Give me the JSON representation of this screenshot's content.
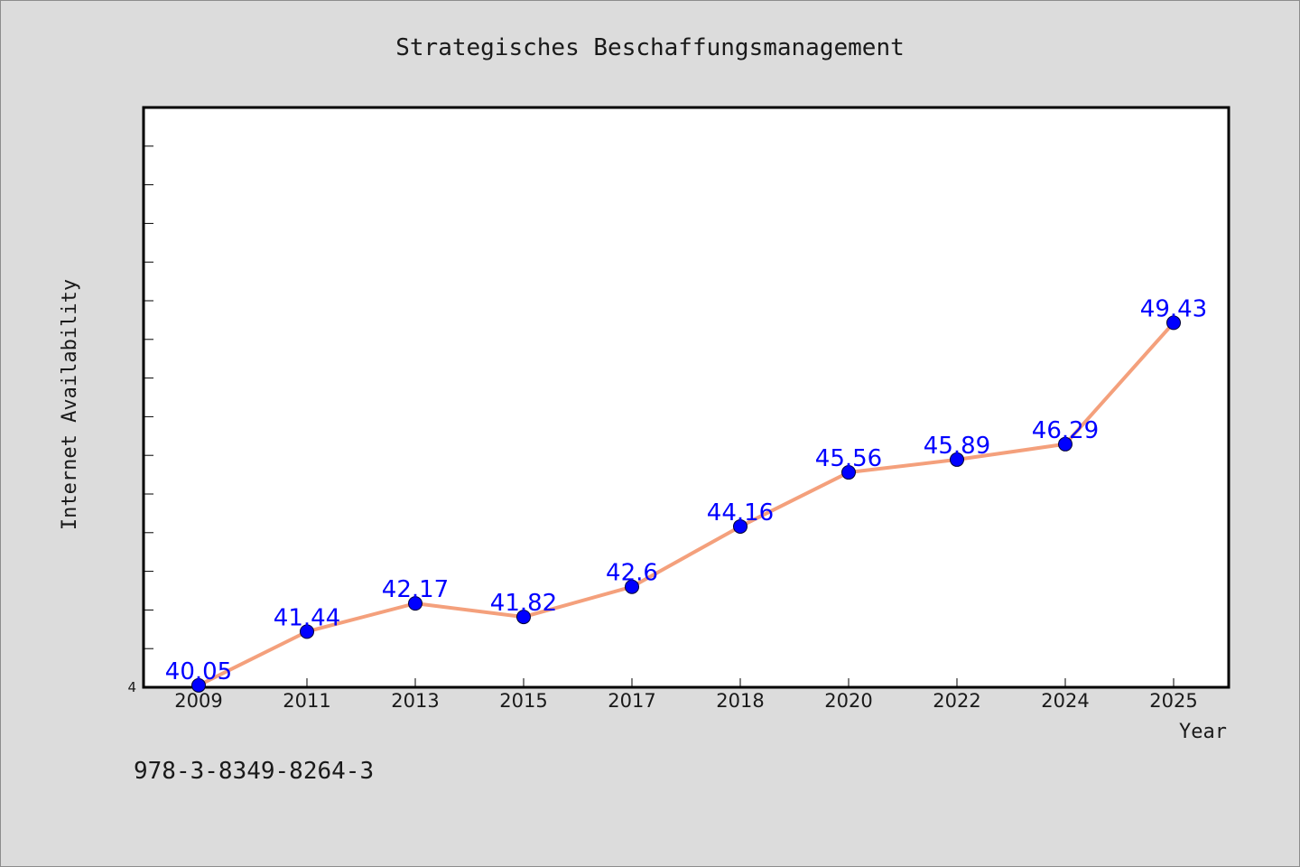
{
  "chart_data": {
    "type": "line",
    "title": "Strategisches Beschaffungsmanagement",
    "xlabel": "Year",
    "ylabel": "Internet Availability",
    "categories": [
      "2009",
      "2011",
      "2013",
      "2015",
      "2017",
      "2018",
      "2020",
      "2022",
      "2024",
      "2025"
    ],
    "series": [
      {
        "values": [
          40.05,
          41.44,
          42.17,
          41.82,
          42.6,
          44.16,
          45.56,
          45.89,
          46.29,
          49.43
        ],
        "labels": [
          "40.05",
          "41.44",
          "42.17",
          "41.82",
          "42.6",
          "44.16",
          "45.56",
          "45.89",
          "46.29",
          "49.43"
        ]
      }
    ],
    "ylim": [
      40,
      55
    ],
    "yticks": [
      "4"
    ],
    "legend": "none",
    "grid": false,
    "colors": {
      "line": "#f4a07c",
      "marker": "#0000ff",
      "label": "#0000ff",
      "plot_background": "#ffffff",
      "figure_background": "#dcdcdc"
    }
  },
  "footer_text": "978-3-8349-8264-3"
}
